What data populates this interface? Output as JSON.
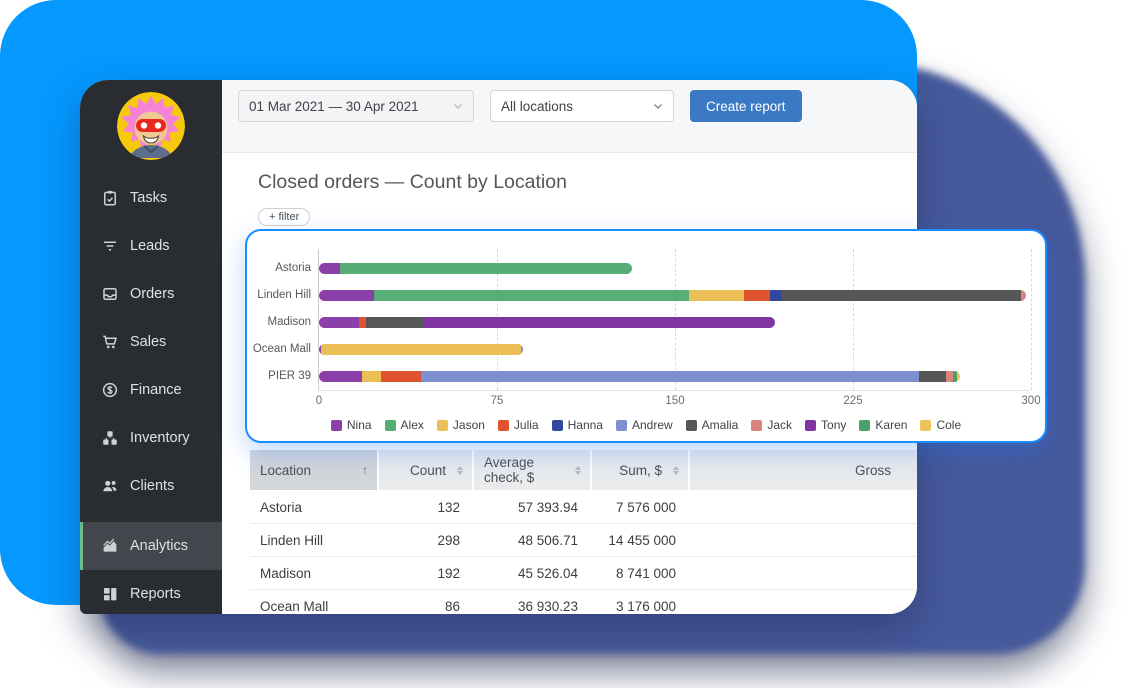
{
  "background": {
    "blue": "#0598fe",
    "indigo": "#46599b"
  },
  "sidebar": {
    "items_top": [
      {
        "id": "tasks",
        "label": "Tasks",
        "icon": "tasks-icon",
        "active": false
      },
      {
        "id": "leads",
        "label": "Leads",
        "icon": "leads-icon",
        "active": false
      },
      {
        "id": "orders",
        "label": "Orders",
        "icon": "orders-icon",
        "active": false
      },
      {
        "id": "sales",
        "label": "Sales",
        "icon": "sales-icon",
        "active": false
      },
      {
        "id": "finance",
        "label": "Finance",
        "icon": "finance-icon",
        "active": false
      },
      {
        "id": "inventory",
        "label": "Inventory",
        "icon": "inventory-icon",
        "active": false
      },
      {
        "id": "clients",
        "label": "Clients",
        "icon": "clients-icon",
        "active": false
      }
    ],
    "items_bottom": [
      {
        "id": "analytics",
        "label": "Analytics",
        "icon": "analytics-icon",
        "active": true
      },
      {
        "id": "reports",
        "label": "Reports",
        "icon": "reports-icon",
        "active": false
      }
    ],
    "active_accent": "#6abf8b"
  },
  "toolbar": {
    "date_range": "01 Mar 2021 — 30 Apr 2021",
    "location_filter": "All locations",
    "create_report_label": "Create report",
    "button_color": "#3b79c4"
  },
  "report": {
    "title": "Closed orders — Count by Location",
    "filter_label": "+ filter"
  },
  "chart_data": {
    "type": "bar",
    "orientation": "horizontal",
    "stacked": true,
    "title": "Closed orders — Count by Location",
    "categories": [
      "Astoria",
      "Linden Hill",
      "Madison",
      "Ocean Mall",
      "PIER 39"
    ],
    "totals": [
      132,
      298,
      192,
      86,
      270
    ],
    "series": [
      {
        "name": "Nina",
        "color": "#8b3fa9",
        "values": [
          9,
          23,
          17,
          1,
          18
        ]
      },
      {
        "name": "Alex",
        "color": "#57ad76",
        "values": [
          123,
          133,
          0,
          0,
          0
        ]
      },
      {
        "name": "Jason",
        "color": "#ecbe56",
        "values": [
          0,
          23,
          0,
          84,
          8
        ]
      },
      {
        "name": "Julia",
        "color": "#e0532f",
        "values": [
          0,
          11,
          3,
          0,
          17
        ]
      },
      {
        "name": "Hanna",
        "color": "#32489e",
        "values": [
          0,
          5,
          0,
          0,
          0
        ]
      },
      {
        "name": "Andrew",
        "color": "#7d8fd0",
        "values": [
          0,
          0,
          0,
          1,
          210
        ],
        "texture": "dots"
      },
      {
        "name": "Amalia",
        "color": "#575757",
        "values": [
          0,
          101,
          24,
          0,
          11
        ]
      },
      {
        "name": "Jack",
        "color": "#d9837f",
        "values": [
          0,
          2,
          0,
          0,
          3
        ]
      },
      {
        "name": "Tony",
        "color": "#8036a0",
        "values": [
          0,
          0,
          148,
          0,
          0
        ]
      },
      {
        "name": "Karen",
        "color": "#4ba06b",
        "values": [
          0,
          0,
          0,
          0,
          2
        ]
      },
      {
        "name": "Cole",
        "color": "#eec25a",
        "values": [
          0,
          0,
          0,
          0,
          1
        ]
      }
    ],
    "xlim": [
      0,
      300
    ],
    "x_ticks": [
      0,
      75,
      150,
      225,
      300
    ],
    "grid": "dashed-vertical",
    "legend_position": "bottom"
  },
  "table": {
    "columns": [
      {
        "label": "Location",
        "sort": "asc",
        "align": "left",
        "width": 127
      },
      {
        "label": "Count",
        "sort": "none",
        "align": "right",
        "width": 93
      },
      {
        "label": "Average check, $",
        "sort": "none",
        "align": "right",
        "width": 116
      },
      {
        "label": "Sum, $",
        "sort": "none",
        "align": "right",
        "width": 96
      },
      {
        "label": "Gross",
        "sort": "none",
        "align": "right",
        "width": 0
      }
    ],
    "rows": [
      [
        "Astoria",
        "132",
        "57 393.94",
        "7 576 000",
        ""
      ],
      [
        "Linden Hill",
        "298",
        "48 506.71",
        "14 455 000",
        ""
      ],
      [
        "Madison",
        "192",
        "45 526.04",
        "8 741 000",
        ""
      ],
      [
        "Ocean Mall",
        "86",
        "36 930.23",
        "3 176 000",
        ""
      ]
    ]
  }
}
